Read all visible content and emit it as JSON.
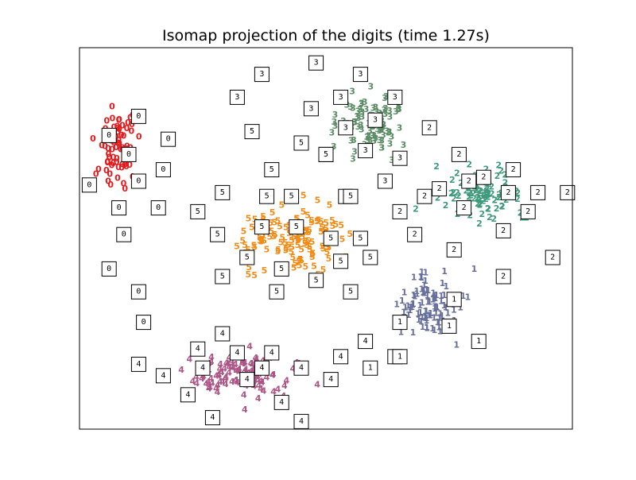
{
  "chart_data": {
    "type": "scatter",
    "title": "Isomap projection of the digits (time 1.27s)",
    "xlabel": "",
    "ylabel": "",
    "xlim": [
      0,
      1
    ],
    "ylim": [
      0,
      1
    ],
    "xticks": [],
    "yticks": [],
    "grid": false,
    "legend": "none",
    "colors": {
      "0": "#e41a1c",
      "1": "#666e9a",
      "2": "#3e9a7a",
      "3": "#5b8c66",
      "4": "#ad5586",
      "5": "#f08c16"
    },
    "clusters": [
      {
        "label": "0",
        "n": 75,
        "cx": 0.08,
        "cy": 0.72,
        "sx": 0.035,
        "sy": 0.09
      },
      {
        "label": "1",
        "n": 95,
        "cx": 0.72,
        "cy": 0.32,
        "sx": 0.06,
        "sy": 0.07
      },
      {
        "label": "2",
        "n": 100,
        "cx": 0.82,
        "cy": 0.62,
        "sx": 0.08,
        "sy": 0.06
      },
      {
        "label": "3",
        "n": 95,
        "cx": 0.59,
        "cy": 0.8,
        "sx": 0.06,
        "sy": 0.07
      },
      {
        "label": "4",
        "n": 105,
        "cx": 0.33,
        "cy": 0.14,
        "sx": 0.09,
        "sy": 0.05
      },
      {
        "label": "5",
        "n": 120,
        "cx": 0.44,
        "cy": 0.5,
        "sx": 0.09,
        "sy": 0.07
      }
    ],
    "thumbnails": [
      {
        "label": "3",
        "x": 0.48,
        "y": 0.96
      },
      {
        "label": "3",
        "x": 0.37,
        "y": 0.93
      },
      {
        "label": "3",
        "x": 0.57,
        "y": 0.93
      },
      {
        "label": "3",
        "x": 0.32,
        "y": 0.87
      },
      {
        "label": "3",
        "x": 0.53,
        "y": 0.87
      },
      {
        "label": "3",
        "x": 0.64,
        "y": 0.87
      },
      {
        "label": "3",
        "x": 0.47,
        "y": 0.84
      },
      {
        "label": "3",
        "x": 0.6,
        "y": 0.81
      },
      {
        "label": "3",
        "x": 0.54,
        "y": 0.79
      },
      {
        "label": "3",
        "x": 0.58,
        "y": 0.73
      },
      {
        "label": "3",
        "x": 0.5,
        "y": 0.72
      },
      {
        "label": "3",
        "x": 0.65,
        "y": 0.71
      },
      {
        "label": "3",
        "x": 0.62,
        "y": 0.65
      },
      {
        "label": "3",
        "x": 0.54,
        "y": 0.61
      },
      {
        "label": "0",
        "x": 0.12,
        "y": 0.82
      },
      {
        "label": "0",
        "x": 0.06,
        "y": 0.77
      },
      {
        "label": "0",
        "x": 0.18,
        "y": 0.76
      },
      {
        "label": "0",
        "x": 0.1,
        "y": 0.72
      },
      {
        "label": "0",
        "x": 0.17,
        "y": 0.68
      },
      {
        "label": "0",
        "x": 0.02,
        "y": 0.64
      },
      {
        "label": "0",
        "x": 0.12,
        "y": 0.65
      },
      {
        "label": "0",
        "x": 0.08,
        "y": 0.58
      },
      {
        "label": "0",
        "x": 0.16,
        "y": 0.58
      },
      {
        "label": "0",
        "x": 0.09,
        "y": 0.51
      },
      {
        "label": "0",
        "x": 0.06,
        "y": 0.42
      },
      {
        "label": "0",
        "x": 0.12,
        "y": 0.36
      },
      {
        "label": "0",
        "x": 0.13,
        "y": 0.28
      },
      {
        "label": "5",
        "x": 0.35,
        "y": 0.78
      },
      {
        "label": "5",
        "x": 0.45,
        "y": 0.75
      },
      {
        "label": "5",
        "x": 0.5,
        "y": 0.72
      },
      {
        "label": "5",
        "x": 0.39,
        "y": 0.68
      },
      {
        "label": "5",
        "x": 0.29,
        "y": 0.62
      },
      {
        "label": "5",
        "x": 0.38,
        "y": 0.61
      },
      {
        "label": "5",
        "x": 0.43,
        "y": 0.61
      },
      {
        "label": "5",
        "x": 0.55,
        "y": 0.61
      },
      {
        "label": "5",
        "x": 0.24,
        "y": 0.57
      },
      {
        "label": "5",
        "x": 0.37,
        "y": 0.53
      },
      {
        "label": "5",
        "x": 0.44,
        "y": 0.53
      },
      {
        "label": "5",
        "x": 0.28,
        "y": 0.51
      },
      {
        "label": "5",
        "x": 0.51,
        "y": 0.5
      },
      {
        "label": "5",
        "x": 0.57,
        "y": 0.5
      },
      {
        "label": "5",
        "x": 0.34,
        "y": 0.45
      },
      {
        "label": "5",
        "x": 0.59,
        "y": 0.45
      },
      {
        "label": "5",
        "x": 0.53,
        "y": 0.44
      },
      {
        "label": "5",
        "x": 0.41,
        "y": 0.42
      },
      {
        "label": "5",
        "x": 0.29,
        "y": 0.4
      },
      {
        "label": "5",
        "x": 0.48,
        "y": 0.39
      },
      {
        "label": "5",
        "x": 0.55,
        "y": 0.36
      },
      {
        "label": "5",
        "x": 0.4,
        "y": 0.36
      },
      {
        "label": "2",
        "x": 0.71,
        "y": 0.79
      },
      {
        "label": "2",
        "x": 0.77,
        "y": 0.72
      },
      {
        "label": "2",
        "x": 0.79,
        "y": 0.65
      },
      {
        "label": "2",
        "x": 0.82,
        "y": 0.66
      },
      {
        "label": "2",
        "x": 0.88,
        "y": 0.68
      },
      {
        "label": "2",
        "x": 0.87,
        "y": 0.62
      },
      {
        "label": "2",
        "x": 0.93,
        "y": 0.62
      },
      {
        "label": "2",
        "x": 0.78,
        "y": 0.58
      },
      {
        "label": "2",
        "x": 0.7,
        "y": 0.61
      },
      {
        "label": "2",
        "x": 0.91,
        "y": 0.57
      },
      {
        "label": "2",
        "x": 0.65,
        "y": 0.57
      },
      {
        "label": "2",
        "x": 0.68,
        "y": 0.51
      },
      {
        "label": "2",
        "x": 0.76,
        "y": 0.47
      },
      {
        "label": "2",
        "x": 0.86,
        "y": 0.52
      },
      {
        "label": "2",
        "x": 0.96,
        "y": 0.45
      },
      {
        "label": "2",
        "x": 0.86,
        "y": 0.4
      },
      {
        "label": "2",
        "x": 0.99,
        "y": 0.62
      },
      {
        "label": "2",
        "x": 0.73,
        "y": 0.63
      },
      {
        "label": "1",
        "x": 0.76,
        "y": 0.34
      },
      {
        "label": "1",
        "x": 0.65,
        "y": 0.28
      },
      {
        "label": "1",
        "x": 0.75,
        "y": 0.27
      },
      {
        "label": "1",
        "x": 0.81,
        "y": 0.23
      },
      {
        "label": "1",
        "x": 0.64,
        "y": 0.19
      },
      {
        "label": "1",
        "x": 0.59,
        "y": 0.16
      },
      {
        "label": "1",
        "x": 0.65,
        "y": 0.19
      },
      {
        "label": "4",
        "x": 0.29,
        "y": 0.25
      },
      {
        "label": "4",
        "x": 0.24,
        "y": 0.21
      },
      {
        "label": "4",
        "x": 0.32,
        "y": 0.2
      },
      {
        "label": "4",
        "x": 0.39,
        "y": 0.2
      },
      {
        "label": "4",
        "x": 0.12,
        "y": 0.17
      },
      {
        "label": "4",
        "x": 0.25,
        "y": 0.16
      },
      {
        "label": "4",
        "x": 0.37,
        "y": 0.16
      },
      {
        "label": "4",
        "x": 0.45,
        "y": 0.16
      },
      {
        "label": "4",
        "x": 0.53,
        "y": 0.19
      },
      {
        "label": "4",
        "x": 0.58,
        "y": 0.23
      },
      {
        "label": "4",
        "x": 0.17,
        "y": 0.14
      },
      {
        "label": "4",
        "x": 0.34,
        "y": 0.13
      },
      {
        "label": "4",
        "x": 0.51,
        "y": 0.13
      },
      {
        "label": "4",
        "x": 0.22,
        "y": 0.09
      },
      {
        "label": "4",
        "x": 0.41,
        "y": 0.07
      },
      {
        "label": "4",
        "x": 0.27,
        "y": 0.03
      },
      {
        "label": "4",
        "x": 0.45,
        "y": 0.02
      }
    ]
  }
}
